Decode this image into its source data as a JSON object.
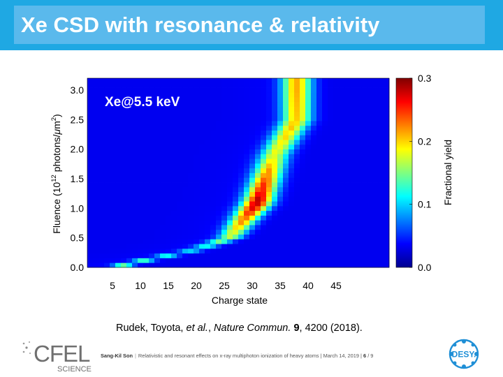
{
  "slide": {
    "title": "Xe CSD with resonance & relativity",
    "citation": {
      "authors": "Rudek, Toyota, ",
      "etal": "et al.",
      "sep1": ", ",
      "journal": "Nature Commun.",
      "volume": "9",
      "rest": ", 4200 (2018)."
    },
    "footer": {
      "author": "Sang-Kil Son",
      "text": "Relativistic and resonant effects on x-ray multiphoton ionization of heavy atoms | March 14, 2019 |",
      "page": "6",
      "total": "/ 9"
    },
    "logos": {
      "cfel": "CFEL",
      "cfel_sub": "SCIENCE",
      "desy": "DESY."
    }
  },
  "chart_data": {
    "type": "heatmap",
    "annotation": "Xe@5.5 keV",
    "xlabel": "Charge state",
    "ylabel_main": "Fluence (10",
    "ylabel_sup1": "12",
    "ylabel_mid": " photons/",
    "ylabel_mu": "μ",
    "ylabel_unit": "m",
    "ylabel_sup2": "2",
    "ylabel_close": ")",
    "xlim": [
      0.5,
      54.5
    ],
    "ylim": [
      0,
      3.2
    ],
    "xticks": [
      5,
      10,
      15,
      20,
      25,
      30,
      35,
      40,
      45
    ],
    "yticks": [
      0.0,
      0.5,
      1.0,
      1.5,
      2.0,
      2.5,
      3.0
    ],
    "ytick_labels": [
      "0.0",
      "0.5",
      "1.0",
      "1.5",
      "2.0",
      "2.5",
      "3.0"
    ],
    "colorbar": {
      "label": "Fractional yield",
      "range": [
        0,
        0.3
      ],
      "ticks": [
        0.0,
        0.1,
        0.2,
        0.3
      ],
      "tick_labels": [
        "0.0",
        "0.1",
        "0.2",
        "0.3"
      ],
      "colormap": "jet"
    },
    "grid": false,
    "peak_yield_by_fluence": [
      {
        "fluence": 0.05,
        "peak_charge": 7,
        "peak_yield": 0.12
      },
      {
        "fluence": 0.3,
        "peak_charge": 20,
        "peak_yield": 0.07
      },
      {
        "fluence": 0.5,
        "peak_charge": 26,
        "peak_yield": 0.14
      },
      {
        "fluence": 1.1,
        "peak_charge": 31,
        "peak_yield": 0.28
      },
      {
        "fluence": 1.9,
        "peak_charge": 34,
        "peak_yield": 0.16
      },
      {
        "fluence": 2.5,
        "peak_charge": 38,
        "peak_yield": 0.19
      },
      {
        "fluence": 3.0,
        "peak_charge": 38,
        "peak_yield": 0.2
      }
    ]
  },
  "colors": {
    "title_band": "#1fa8e3",
    "title_box": "#5ab9ec",
    "desy_blue": "#1f8fd6"
  }
}
